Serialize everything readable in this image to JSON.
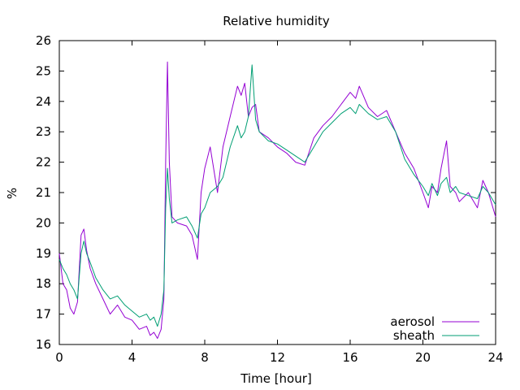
{
  "chart_data": {
    "type": "line",
    "title": "Relative humidity",
    "xlabel": "Time [hour]",
    "ylabel": "%",
    "xlim": [
      0,
      24
    ],
    "ylim": [
      16,
      26
    ],
    "xticks": [
      "0",
      "4",
      "8",
      "12",
      "16",
      "20",
      "24"
    ],
    "yticks": [
      "16",
      "17",
      "18",
      "19",
      "20",
      "21",
      "22",
      "23",
      "24",
      "25",
      "26"
    ],
    "grid": false,
    "legend_position": "bottom-right",
    "series": [
      {
        "name": "aerosol",
        "color": "#9400d3",
        "x": [
          0,
          0.2,
          0.4,
          0.6,
          0.8,
          1.0,
          1.2,
          1.35,
          1.5,
          1.7,
          2.0,
          2.4,
          2.8,
          3.2,
          3.6,
          4.0,
          4.4,
          4.8,
          5.0,
          5.2,
          5.4,
          5.6,
          5.75,
          5.85,
          5.95,
          6.05,
          6.2,
          6.5,
          7.0,
          7.3,
          7.6,
          7.8,
          8.0,
          8.3,
          8.7,
          9.0,
          9.4,
          9.8,
          10.0,
          10.2,
          10.4,
          10.6,
          10.8,
          11.0,
          11.5,
          12.0,
          12.5,
          13.0,
          13.5,
          14.0,
          14.5,
          15.0,
          15.5,
          16.0,
          16.3,
          16.5,
          17.0,
          17.5,
          18.0,
          18.5,
          19.0,
          19.5,
          20.0,
          20.3,
          20.5,
          20.8,
          21.0,
          21.3,
          21.5,
          21.8,
          22.0,
          22.5,
          23.0,
          23.3,
          23.6,
          24.0
        ],
        "y": [
          19.0,
          18.0,
          17.8,
          17.2,
          17.0,
          17.4,
          19.6,
          19.8,
          19.1,
          18.5,
          18.0,
          17.5,
          17.0,
          17.3,
          16.9,
          16.8,
          16.5,
          16.6,
          16.3,
          16.4,
          16.2,
          16.5,
          17.5,
          22.0,
          25.3,
          22.0,
          20.2,
          20.0,
          19.9,
          19.6,
          18.8,
          21.0,
          21.8,
          22.5,
          21.0,
          22.5,
          23.5,
          24.5,
          24.2,
          24.6,
          23.5,
          23.8,
          23.9,
          23.0,
          22.8,
          22.5,
          22.3,
          22.0,
          21.9,
          22.8,
          23.2,
          23.5,
          23.9,
          24.3,
          24.1,
          24.5,
          23.8,
          23.5,
          23.7,
          23.0,
          22.3,
          21.8,
          21.0,
          20.5,
          21.2,
          21.0,
          21.8,
          22.7,
          21.2,
          21.0,
          20.7,
          21.0,
          20.5,
          21.4,
          21.0,
          20.2
        ]
      },
      {
        "name": "sheath",
        "color": "#009e73",
        "x": [
          0,
          0.2,
          0.4,
          0.6,
          0.8,
          1.0,
          1.2,
          1.35,
          1.5,
          1.7,
          2.0,
          2.4,
          2.8,
          3.2,
          3.6,
          4.0,
          4.4,
          4.8,
          5.0,
          5.2,
          5.4,
          5.6,
          5.75,
          5.85,
          5.95,
          6.05,
          6.2,
          6.5,
          7.0,
          7.3,
          7.6,
          7.8,
          8.0,
          8.3,
          8.7,
          9.0,
          9.4,
          9.8,
          10.0,
          10.2,
          10.4,
          10.6,
          10.8,
          11.0,
          11.5,
          12.0,
          12.5,
          13.0,
          13.5,
          14.0,
          14.5,
          15.0,
          15.5,
          16.0,
          16.3,
          16.5,
          17.0,
          17.5,
          18.0,
          18.5,
          19.0,
          19.5,
          20.0,
          20.3,
          20.5,
          20.8,
          21.0,
          21.3,
          21.5,
          21.8,
          22.0,
          22.5,
          23.0,
          23.3,
          23.6,
          24.0
        ],
        "y": [
          18.8,
          18.5,
          18.3,
          18.0,
          17.8,
          17.5,
          19.0,
          19.4,
          19.0,
          18.7,
          18.2,
          17.8,
          17.5,
          17.6,
          17.3,
          17.1,
          16.9,
          17.0,
          16.8,
          16.9,
          16.6,
          17.0,
          17.8,
          20.5,
          21.8,
          20.8,
          20.0,
          20.1,
          20.2,
          19.9,
          19.5,
          20.3,
          20.5,
          21.0,
          21.2,
          21.5,
          22.5,
          23.2,
          22.8,
          23.0,
          23.5,
          25.2,
          23.4,
          23.0,
          22.7,
          22.6,
          22.4,
          22.2,
          22.0,
          22.5,
          23.0,
          23.3,
          23.6,
          23.8,
          23.6,
          23.9,
          23.6,
          23.4,
          23.5,
          23.0,
          22.1,
          21.6,
          21.2,
          20.9,
          21.3,
          20.9,
          21.3,
          21.5,
          21.0,
          21.2,
          21.0,
          20.9,
          20.8,
          21.2,
          21.0,
          20.6
        ]
      }
    ]
  }
}
